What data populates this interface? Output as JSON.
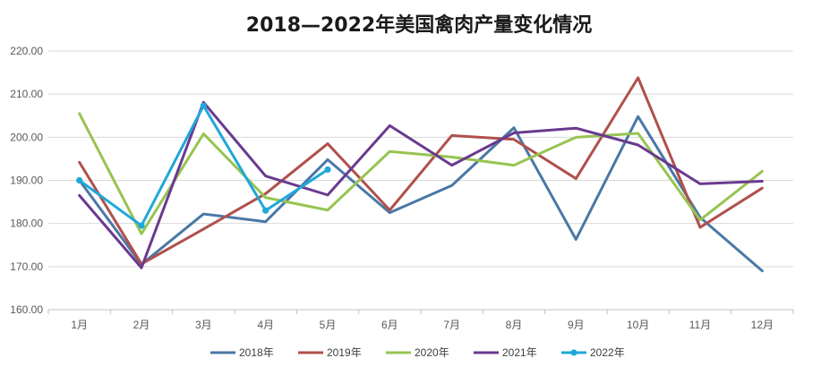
{
  "chart_data": {
    "type": "line",
    "title": "2018—2022年美国禽肉产量变化情况",
    "xlabel": "",
    "ylabel": "",
    "categories": [
      "1月",
      "2月",
      "3月",
      "4月",
      "5月",
      "6月",
      "7月",
      "8月",
      "9月",
      "10月",
      "11月",
      "12月"
    ],
    "ylim": [
      160,
      220
    ],
    "ytick_labels": [
      "160.00",
      "170.00",
      "180.00",
      "190.00",
      "200.00",
      "210.00",
      "220.00"
    ],
    "grid": true,
    "legend_position": "bottom",
    "series": [
      {
        "name": "2018年",
        "color": "#4a78a6",
        "markers": false,
        "values": [
          190.0,
          170.5,
          182.2,
          180.4,
          194.8,
          182.5,
          188.8,
          202.2,
          176.3,
          204.8,
          181.4,
          169.0
        ]
      },
      {
        "name": "2019年",
        "color": "#b0504c",
        "markers": false,
        "values": [
          194.2,
          170.6,
          178.7,
          186.9,
          198.5,
          183.1,
          200.4,
          199.5,
          190.4,
          213.8,
          179.1,
          188.2
        ]
      },
      {
        "name": "2020年",
        "color": "#97c452",
        "markers": false,
        "values": [
          205.5,
          177.6,
          200.8,
          186.0,
          183.1,
          196.7,
          195.4,
          193.5,
          200.0,
          200.9,
          180.8,
          192.1
        ]
      },
      {
        "name": "2021年",
        "color": "#6a3a8e",
        "markers": false,
        "values": [
          186.5,
          169.7,
          208.1,
          191.0,
          186.6,
          202.7,
          193.5,
          201.0,
          202.1,
          198.2,
          189.2,
          189.8
        ]
      },
      {
        "name": "2022年",
        "color": "#1fa8d9",
        "markers": true,
        "values": [
          190.0,
          179.5,
          207.3,
          183.0,
          192.5,
          null,
          null,
          null,
          null,
          null,
          null,
          null
        ]
      }
    ]
  }
}
